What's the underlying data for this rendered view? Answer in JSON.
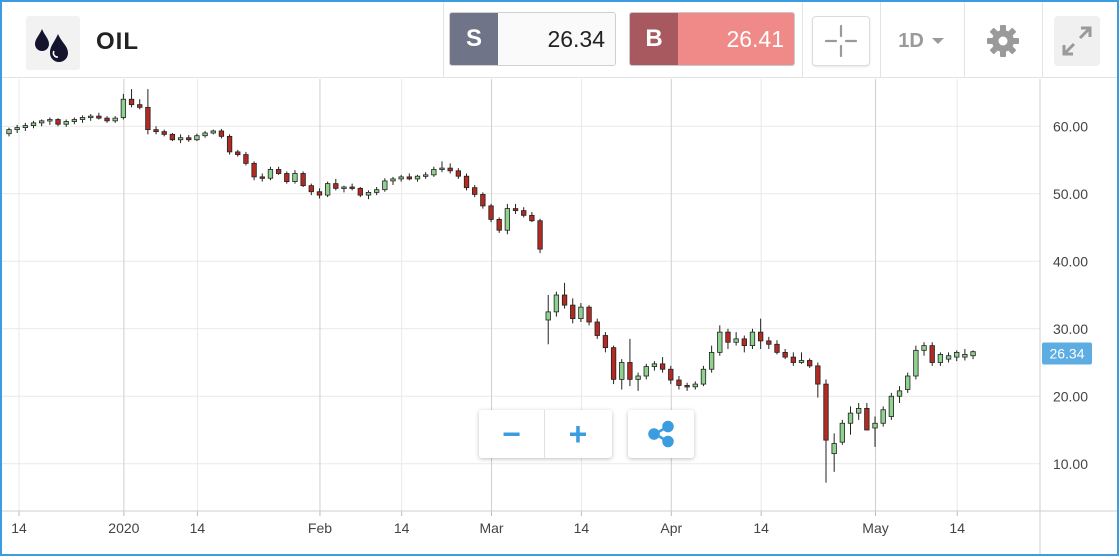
{
  "instrument": {
    "symbol": "OIL",
    "logo_icon": "oil-drops-icon"
  },
  "quote": {
    "sell_label": "S",
    "sell_price": "26.34",
    "buy_label": "B",
    "buy_price": "26.41"
  },
  "toolbar": {
    "crosshair_icon": "crosshair-icon",
    "period": "1D",
    "settings_icon": "gear-icon",
    "fullscreen_icon": "expand-icon"
  },
  "controls": {
    "zoom_out": "−",
    "zoom_in": "+",
    "share_icon": "share-icon"
  },
  "colors": {
    "up": "#8fd18f",
    "down": "#b22a22",
    "grid": "#e9e9e9",
    "axis_text": "#444444",
    "accent": "#3c9ce0",
    "current_price_bg": "#5dade2"
  },
  "chart_data": {
    "type": "candlestick",
    "title": "",
    "xlabel": "",
    "ylabel": "",
    "ylim": [
      3,
      67
    ],
    "y_ticks": [
      "10.00",
      "20.00",
      "30.00",
      "40.00",
      "50.00",
      "60.00"
    ],
    "x_tick_labels": [
      "14",
      "2020",
      "14",
      "Feb",
      "14",
      "Mar",
      "14",
      "Apr",
      "14",
      "May",
      "14"
    ],
    "grid": true,
    "current_price": "26.34",
    "candles": [
      [
        58.9,
        59.8,
        58.5,
        59.5
      ],
      [
        59.5,
        60.2,
        59.0,
        59.8
      ],
      [
        59.8,
        60.5,
        59.3,
        60.1
      ],
      [
        60.1,
        60.8,
        59.7,
        60.5
      ],
      [
        60.5,
        61.0,
        60.0,
        60.8
      ],
      [
        60.8,
        61.3,
        60.2,
        61.0
      ],
      [
        61.0,
        61.2,
        60.0,
        60.3
      ],
      [
        60.3,
        61.0,
        59.9,
        60.7
      ],
      [
        60.7,
        61.3,
        60.3,
        61.0
      ],
      [
        61.0,
        61.6,
        60.5,
        61.3
      ],
      [
        61.3,
        61.8,
        60.8,
        61.5
      ],
      [
        61.5,
        62.0,
        61.0,
        61.2
      ],
      [
        61.2,
        61.5,
        60.5,
        60.8
      ],
      [
        60.8,
        61.5,
        60.5,
        61.2
      ],
      [
        61.3,
        64.8,
        61.0,
        64.0
      ],
      [
        64.0,
        65.5,
        62.8,
        63.2
      ],
      [
        63.2,
        64.0,
        62.5,
        62.8
      ],
      [
        62.8,
        65.5,
        58.8,
        59.5
      ],
      [
        59.5,
        60.0,
        58.8,
        59.2
      ],
      [
        59.2,
        59.5,
        58.5,
        58.8
      ],
      [
        58.8,
        59.0,
        57.8,
        58.0
      ],
      [
        58.0,
        58.8,
        57.5,
        58.3
      ],
      [
        58.3,
        58.7,
        57.7,
        58.0
      ],
      [
        58.0,
        58.9,
        57.8,
        58.6
      ],
      [
        58.6,
        59.3,
        58.3,
        59.0
      ],
      [
        59.0,
        59.5,
        58.8,
        59.3
      ],
      [
        59.3,
        59.6,
        58.2,
        58.5
      ],
      [
        58.5,
        58.8,
        55.8,
        56.2
      ],
      [
        56.2,
        56.5,
        55.5,
        55.8
      ],
      [
        55.8,
        56.2,
        54.2,
        54.5
      ],
      [
        54.5,
        54.8,
        52.0,
        52.5
      ],
      [
        52.5,
        53.0,
        51.8,
        52.3
      ],
      [
        52.3,
        54.0,
        52.0,
        53.6
      ],
      [
        53.6,
        54.0,
        52.8,
        53.0
      ],
      [
        53.0,
        53.3,
        51.5,
        51.8
      ],
      [
        51.8,
        53.5,
        51.5,
        53.0
      ],
      [
        53.0,
        53.3,
        51.0,
        51.2
      ],
      [
        51.2,
        51.5,
        49.8,
        50.3
      ],
      [
        50.3,
        50.8,
        49.3,
        49.8
      ],
      [
        49.8,
        51.8,
        49.5,
        51.5
      ],
      [
        51.5,
        52.2,
        50.5,
        50.8
      ],
      [
        50.8,
        51.2,
        50.2,
        51.0
      ],
      [
        51.0,
        51.5,
        50.5,
        50.8
      ],
      [
        50.8,
        51.0,
        49.5,
        49.8
      ],
      [
        49.8,
        50.5,
        49.2,
        50.2
      ],
      [
        50.2,
        51.0,
        49.8,
        50.6
      ],
      [
        50.6,
        52.3,
        50.3,
        51.9
      ],
      [
        51.9,
        52.5,
        51.3,
        52.2
      ],
      [
        52.2,
        52.8,
        51.8,
        52.5
      ],
      [
        52.5,
        53.0,
        52.0,
        52.2
      ],
      [
        52.2,
        52.8,
        51.8,
        52.6
      ],
      [
        52.6,
        53.2,
        52.2,
        52.8
      ],
      [
        52.8,
        54.0,
        52.5,
        53.6
      ],
      [
        53.6,
        54.8,
        53.2,
        53.8
      ],
      [
        53.8,
        54.5,
        53.0,
        53.4
      ],
      [
        53.4,
        53.8,
        52.2,
        52.6
      ],
      [
        52.6,
        53.0,
        50.5,
        50.9
      ],
      [
        50.9,
        51.3,
        49.5,
        49.9
      ],
      [
        49.9,
        50.2,
        47.8,
        48.2
      ],
      [
        48.2,
        48.5,
        45.8,
        46.2
      ],
      [
        46.2,
        46.5,
        44.2,
        44.6
      ],
      [
        44.6,
        48.5,
        44.0,
        47.8
      ],
      [
        47.8,
        48.5,
        47.0,
        47.5
      ],
      [
        47.5,
        48.0,
        46.5,
        46.8
      ],
      [
        46.8,
        47.3,
        45.8,
        46.0
      ],
      [
        46.0,
        46.3,
        41.2,
        41.8
      ],
      [
        31.3,
        35.0,
        27.7,
        32.5
      ],
      [
        32.5,
        35.5,
        31.8,
        35.0
      ],
      [
        35.0,
        36.8,
        33.0,
        33.5
      ],
      [
        33.5,
        34.5,
        30.8,
        31.5
      ],
      [
        31.5,
        33.8,
        31.0,
        33.2
      ],
      [
        33.2,
        33.5,
        30.5,
        31.0
      ],
      [
        31.0,
        31.5,
        28.5,
        29.0
      ],
      [
        29.0,
        29.5,
        26.5,
        27.2
      ],
      [
        27.2,
        27.5,
        21.8,
        22.5
      ],
      [
        22.5,
        25.5,
        21.0,
        25.0
      ],
      [
        25.0,
        28.5,
        21.5,
        22.5
      ],
      [
        22.5,
        23.5,
        20.8,
        23.0
      ],
      [
        23.0,
        24.8,
        22.5,
        24.4
      ],
      [
        24.4,
        25.2,
        23.8,
        24.8
      ],
      [
        24.8,
        25.8,
        23.5,
        24.0
      ],
      [
        24.0,
        24.5,
        21.8,
        22.4
      ],
      [
        22.4,
        23.0,
        21.0,
        21.6
      ],
      [
        21.6,
        22.0,
        20.8,
        21.4
      ],
      [
        21.4,
        22.2,
        21.0,
        21.8
      ],
      [
        21.8,
        24.5,
        21.5,
        24.0
      ],
      [
        24.0,
        27.5,
        23.5,
        26.5
      ],
      [
        26.5,
        30.5,
        26.0,
        29.5
      ],
      [
        29.5,
        30.0,
        27.0,
        28.0
      ],
      [
        28.0,
        29.5,
        27.5,
        28.5
      ],
      [
        28.5,
        29.0,
        26.5,
        27.5
      ],
      [
        27.5,
        30.0,
        27.0,
        29.5
      ],
      [
        29.5,
        31.5,
        27.0,
        28.2
      ],
      [
        28.2,
        28.8,
        27.0,
        27.7
      ],
      [
        27.7,
        28.3,
        26.2,
        26.5
      ],
      [
        26.5,
        27.0,
        25.5,
        25.8
      ],
      [
        25.8,
        26.5,
        24.5,
        25.0
      ],
      [
        25.0,
        26.5,
        24.8,
        25.3
      ],
      [
        25.3,
        25.6,
        24.2,
        24.5
      ],
      [
        24.5,
        25.0,
        19.8,
        21.8
      ],
      [
        21.8,
        22.5,
        7.2,
        13.5
      ],
      [
        11.5,
        14.5,
        8.8,
        13.0
      ],
      [
        13.2,
        16.5,
        12.8,
        16.0
      ],
      [
        16.0,
        18.5,
        14.3,
        17.5
      ],
      [
        17.5,
        19.0,
        16.5,
        18.2
      ],
      [
        18.2,
        19.0,
        15.0,
        15.0
      ],
      [
        15.3,
        17.0,
        12.5,
        16.0
      ],
      [
        16.0,
        18.5,
        15.5,
        18.0
      ],
      [
        17.0,
        20.5,
        16.5,
        20.0
      ],
      [
        20.0,
        21.5,
        19.0,
        20.8
      ],
      [
        21.0,
        23.5,
        20.5,
        23.0
      ],
      [
        23.0,
        27.5,
        22.5,
        26.8
      ],
      [
        26.8,
        28.0,
        26.0,
        27.5
      ],
      [
        27.5,
        28.0,
        24.5,
        25.0
      ],
      [
        25.0,
        26.5,
        24.5,
        26.2
      ],
      [
        25.5,
        26.5,
        25.0,
        26.0
      ],
      [
        25.8,
        26.8,
        25.2,
        26.5
      ],
      [
        25.8,
        27.0,
        25.3,
        26.2
      ],
      [
        26.0,
        26.8,
        25.5,
        26.6
      ]
    ]
  }
}
